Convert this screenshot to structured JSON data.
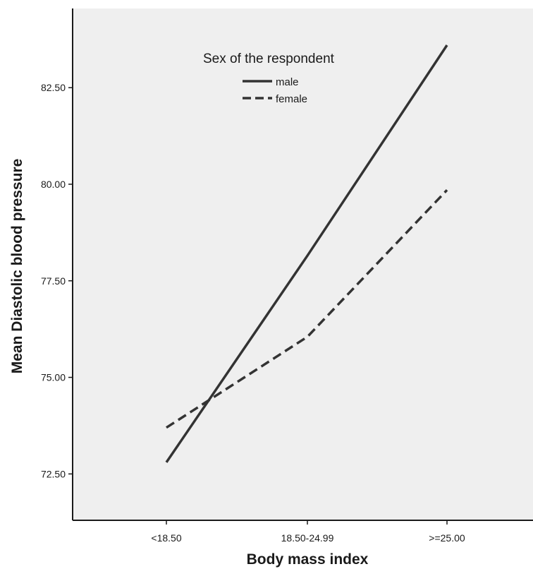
{
  "chart_data": {
    "type": "line",
    "xlabel": "Body mass index",
    "ylabel": "Mean Diastolic blood pressure",
    "categories": [
      "<18.50",
      "18.50-24.99",
      ">=25.00"
    ],
    "ylim": [
      71.3,
      84.55
    ],
    "yticks": [
      "72.50",
      "75.00",
      "77.50",
      "80.00",
      "82.50"
    ],
    "legend": {
      "title": "Sex of the respondent",
      "position": "top-center"
    },
    "grid": false,
    "series": [
      {
        "name": "male",
        "style": "solid",
        "values": [
          72.8,
          78.15,
          83.6
        ]
      },
      {
        "name": "female",
        "style": "dashed",
        "values": [
          73.7,
          76.05,
          79.85
        ]
      }
    ],
    "colors": {
      "plot_background": "#efefef",
      "line": "#333333",
      "axis": "#1a1a1a"
    }
  }
}
